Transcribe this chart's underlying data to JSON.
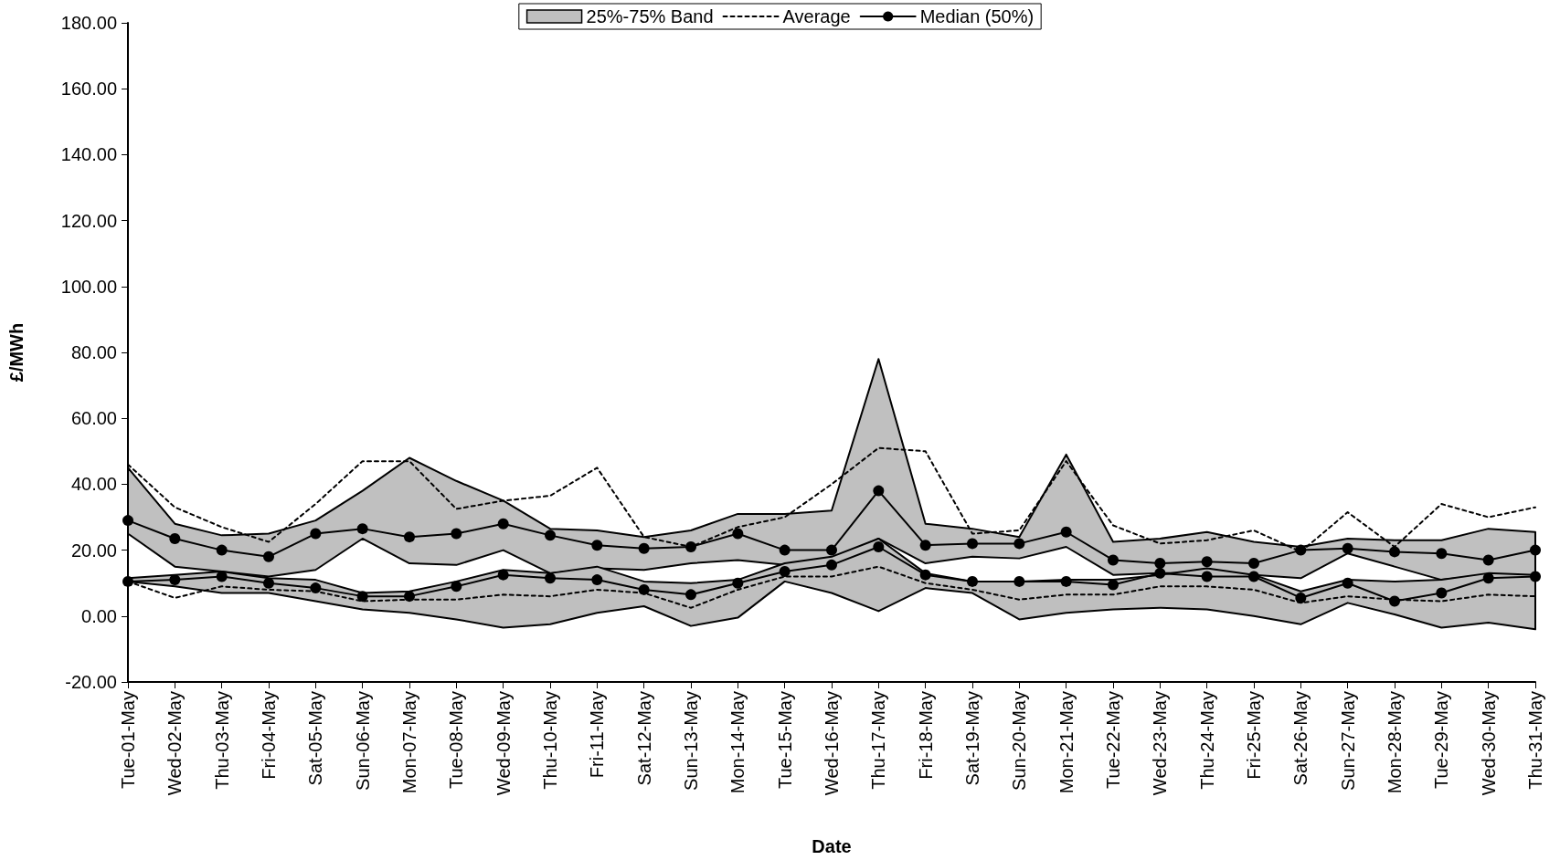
{
  "chart_data": {
    "type": "line",
    "xlabel": "Date",
    "ylabel": "£/MWh",
    "categories": [
      "Tue-01-May",
      "Wed-02-May",
      "Thu-03-May",
      "Fri-04-May",
      "Sat-05-May",
      "Sun-06-May",
      "Mon-07-May",
      "Tue-08-May",
      "Wed-09-May",
      "Thu-10-May",
      "Fri-11-May",
      "Sat-12-May",
      "Sun-13-May",
      "Mon-14-May",
      "Tue-15-May",
      "Wed-16-May",
      "Thu-17-May",
      "Fri-18-May",
      "Sat-19-May",
      "Sun-20-May",
      "Mon-21-May",
      "Tue-22-May",
      "Wed-23-May",
      "Thu-24-May",
      "Fri-25-May",
      "Sat-26-May",
      "Sun-27-May",
      "Mon-28-May",
      "Tue-29-May",
      "Wed-30-May",
      "Thu-31-May"
    ],
    "series": [
      {
        "name": "Average",
        "color": "#000000",
        "line_style": "dashed",
        "marker": "none",
        "values": [
          46,
          33,
          27,
          22.5,
          34,
          47,
          47,
          32.5,
          35,
          36.5,
          45,
          24,
          21,
          27,
          30,
          40,
          51,
          50,
          25,
          26,
          47,
          27.5,
          22,
          23,
          26,
          19.5,
          31.5,
          21,
          34,
          30,
          33
        ]
      },
      {
        "color": "#000000",
        "line_style": "dashed",
        "marker": "none",
        "values": [
          10.5,
          5.5,
          9,
          8,
          7.5,
          4.5,
          5,
          5,
          6.5,
          6,
          8,
          7,
          2.5,
          8,
          12,
          12,
          15,
          10,
          8,
          5,
          6.5,
          6.5,
          9,
          9,
          8,
          4,
          6,
          5,
          4.5,
          6.5,
          6
        ]
      },
      {
        "name": "Median (50%)",
        "color": "#000000",
        "line_style": "solid",
        "marker": "circle",
        "values": [
          29,
          23.5,
          20,
          18,
          25,
          26.5,
          24,
          25,
          28,
          24.5,
          21.5,
          20.5,
          21,
          25,
          20,
          20,
          38,
          21.5,
          22,
          22,
          25.5,
          17,
          16,
          16.5,
          16,
          20,
          20.5,
          19.5,
          19,
          17,
          20
        ],
        "lower": [
          25,
          15,
          13.5,
          12,
          14,
          23.5,
          16,
          15.5,
          20,
          13,
          14.5,
          14,
          16,
          17,
          15.5,
          17,
          23.5,
          16,
          18,
          17.5,
          21,
          12.5,
          13,
          13,
          12.5,
          11.5,
          19,
          15,
          11,
          12.5,
          12
        ],
        "upper": [
          45,
          28,
          24.5,
          25,
          29,
          38,
          48,
          41,
          35,
          26.5,
          26,
          24,
          26,
          31,
          31,
          32,
          78,
          28,
          26.5,
          24,
          49,
          22.5,
          23.5,
          25.5,
          22.5,
          21,
          23.5,
          23,
          23,
          26.5,
          25.5
        ]
      },
      {
        "color": "#000000",
        "line_style": "solid",
        "marker": "circle",
        "values": [
          10.5,
          11,
          12,
          10,
          8.5,
          6,
          6,
          9,
          12.5,
          11.5,
          11,
          8,
          6.5,
          10,
          13.5,
          15.5,
          21,
          12.5,
          10.5,
          10.5,
          10.5,
          9.5,
          13,
          12,
          12,
          5.5,
          10,
          4.5,
          7,
          11.5,
          12
        ],
        "lower": [
          10.5,
          9,
          7,
          7,
          4.5,
          2,
          1,
          -1,
          -3.5,
          -2.5,
          1,
          3,
          -3,
          -0.5,
          10.5,
          7,
          1.5,
          8.5,
          7,
          -1,
          1,
          2,
          2.5,
          2,
          0,
          -2.5,
          4,
          0.5,
          -3.5,
          -2,
          -4
        ],
        "upper": [
          11.5,
          12.5,
          13.5,
          11.5,
          11,
          7,
          7.5,
          10.5,
          14,
          13,
          15,
          10.5,
          10,
          11,
          16,
          18,
          23.5,
          13,
          10.5,
          10.5,
          11,
          11,
          12.5,
          14.5,
          12.5,
          7.5,
          11,
          10.5,
          11,
          13,
          12.5
        ]
      }
    ],
    "annotations": [
      "25%-75% Band"
    ],
    "ylim": [
      -20,
      180
    ],
    "yticks": [
      {
        "value": -20,
        "label": "-20.00"
      },
      {
        "value": 0,
        "label": "0.00"
      },
      {
        "value": 20,
        "label": "20.00"
      },
      {
        "value": 40,
        "label": "40.00"
      },
      {
        "value": 60,
        "label": "60.00"
      },
      {
        "value": 80,
        "label": "80.00"
      },
      {
        "value": 100,
        "label": "100.00"
      },
      {
        "value": 120,
        "label": "120.00"
      },
      {
        "value": 140,
        "label": "140.00"
      },
      {
        "value": 160,
        "label": "160.00"
      },
      {
        "value": 180,
        "label": "180.00"
      }
    ],
    "grid": false,
    "legend": "top"
  }
}
